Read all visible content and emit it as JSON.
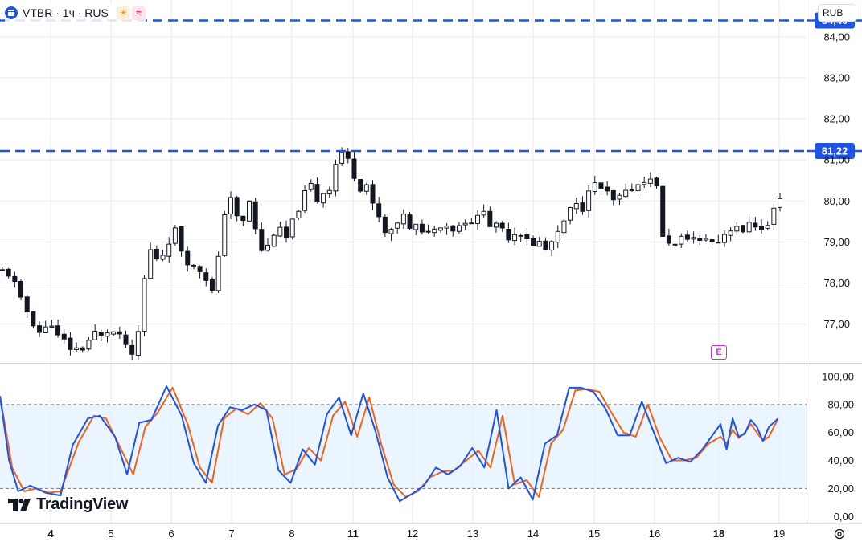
{
  "header": {
    "symbol": "VTBR · 1ч · RUS",
    "currency_button": "RUB",
    "logo_text": "TradingView",
    "event_marker": "E"
  },
  "colors": {
    "up": "#131722",
    "down": "#131722",
    "level_line": "#1e53e5",
    "stoch_k": "#1e53e5",
    "stoch_d": "#f0641e",
    "stoch_band": "#e3f2fd",
    "grid": "#e8eaee"
  },
  "chart_data": [
    {
      "type": "candlestick",
      "yscale": "linear",
      "ylim": [
        76.05,
        84.9
      ],
      "y_ticks": [
        "84,00",
        "83,00",
        "82,00",
        "81,00",
        "80,00",
        "79,00",
        "78,00",
        "77,00"
      ],
      "y_tick_values": [
        84,
        83,
        82,
        81,
        80,
        79,
        78,
        77
      ],
      "x_labels": [
        "4",
        "5",
        "6",
        "7",
        "8",
        "11",
        "12",
        "13",
        "14",
        "15",
        "16",
        "18",
        "19"
      ],
      "horizontal_levels": [
        {
          "label": "84,40",
          "value": 84.4
        },
        {
          "label": "81,22",
          "value": 81.22
        }
      ],
      "anchors": [
        [
          0,
          78.3
        ],
        [
          1,
          78.2
        ],
        [
          2,
          78.0
        ],
        [
          3,
          77.6
        ],
        [
          4,
          77.3
        ],
        [
          5,
          77.0
        ],
        [
          6,
          76.8
        ],
        [
          7,
          76.9
        ],
        [
          8,
          77.0
        ],
        [
          9,
          76.7
        ],
        [
          10,
          76.6
        ],
        [
          11,
          76.4
        ],
        [
          12,
          76.4
        ],
        [
          13,
          76.4
        ],
        [
          14,
          76.6
        ],
        [
          15,
          76.8
        ],
        [
          16,
          76.7
        ],
        [
          17,
          76.8
        ],
        [
          18,
          76.8
        ],
        [
          19,
          76.7
        ],
        [
          20,
          76.5
        ],
        [
          21,
          76.2
        ],
        [
          22,
          76.8
        ],
        [
          23,
          78.1
        ],
        [
          24,
          78.8
        ],
        [
          25,
          78.6
        ],
        [
          26,
          78.7
        ],
        [
          27,
          79.0
        ],
        [
          28,
          79.3
        ],
        [
          29,
          78.8
        ],
        [
          30,
          78.5
        ],
        [
          31,
          78.4
        ],
        [
          32,
          78.3
        ],
        [
          33,
          78.1
        ],
        [
          34,
          77.8
        ],
        [
          35,
          78.6
        ],
        [
          36,
          79.7
        ],
        [
          37,
          80.1
        ],
        [
          38,
          79.6
        ],
        [
          39,
          79.5
        ],
        [
          40,
          80.0
        ],
        [
          41,
          79.3
        ],
        [
          42,
          78.8
        ],
        [
          43,
          78.9
        ],
        [
          44,
          79.2
        ],
        [
          45,
          79.3
        ],
        [
          46,
          79.1
        ],
        [
          47,
          79.5
        ],
        [
          48,
          79.8
        ],
        [
          49,
          80.2
        ],
        [
          50,
          80.4
        ],
        [
          51,
          80.0
        ],
        [
          52,
          80.2
        ],
        [
          53,
          80.3
        ],
        [
          54,
          80.9
        ],
        [
          55,
          81.2
        ],
        [
          56,
          81.0
        ],
        [
          57,
          80.6
        ],
        [
          58,
          80.3
        ],
        [
          59,
          80.4
        ],
        [
          60,
          79.9
        ],
        [
          61,
          79.6
        ],
        [
          62,
          79.2
        ],
        [
          63,
          79.3
        ],
        [
          64,
          79.4
        ],
        [
          65,
          79.7
        ],
        [
          66,
          79.3
        ],
        [
          67,
          79.4
        ],
        [
          68,
          79.2
        ],
        [
          69,
          79.3
        ],
        [
          70,
          79.3
        ],
        [
          71,
          79.4
        ],
        [
          72,
          79.4
        ],
        [
          73,
          79.3
        ],
        [
          74,
          79.4
        ],
        [
          75,
          79.5
        ],
        [
          76,
          79.5
        ],
        [
          77,
          79.6
        ],
        [
          78,
          79.8
        ],
        [
          79,
          79.4
        ],
        [
          80,
          79.4
        ],
        [
          81,
          79.3
        ],
        [
          82,
          79.1
        ],
        [
          83,
          79.2
        ],
        [
          84,
          79.2
        ],
        [
          85,
          79.1
        ],
        [
          86,
          78.9
        ],
        [
          87,
          79.0
        ],
        [
          88,
          78.8
        ],
        [
          89,
          79.0
        ],
        [
          90,
          79.2
        ],
        [
          91,
          79.5
        ],
        [
          92,
          79.8
        ],
        [
          93,
          79.9
        ],
        [
          94,
          79.8
        ],
        [
          95,
          80.3
        ],
        [
          96,
          80.4
        ],
        [
          97,
          80.3
        ],
        [
          98,
          80.2
        ],
        [
          99,
          80.0
        ],
        [
          100,
          80.1
        ],
        [
          101,
          80.2
        ],
        [
          102,
          80.3
        ],
        [
          103,
          80.4
        ],
        [
          104,
          80.5
        ],
        [
          105,
          80.5
        ],
        [
          106,
          80.4
        ],
        [
          107,
          79.1
        ],
        [
          108,
          79.0
        ],
        [
          109,
          78.9
        ],
        [
          110,
          79.1
        ],
        [
          111,
          79.1
        ],
        [
          112,
          79.1
        ],
        [
          113,
          79.0
        ],
        [
          114,
          79.1
        ],
        [
          115,
          79.0
        ],
        [
          116,
          79.0
        ],
        [
          117,
          79.2
        ],
        [
          118,
          79.3
        ],
        [
          119,
          79.4
        ],
        [
          120,
          79.2
        ],
        [
          121,
          79.5
        ],
        [
          122,
          79.4
        ],
        [
          123,
          79.3
        ],
        [
          124,
          79.4
        ],
        [
          125,
          79.8
        ],
        [
          126,
          80.1
        ]
      ]
    },
    {
      "type": "line",
      "indicator": "Stochastic",
      "ylim": [
        -5,
        108
      ],
      "y_ticks": [
        "100,00",
        "80,00",
        "60,00",
        "40,00",
        "20,00",
        "0,00"
      ],
      "y_tick_values": [
        100,
        80,
        60,
        40,
        20,
        0
      ],
      "band": [
        20,
        80
      ],
      "series": [
        {
          "role": "k",
          "values": [
            [
              0,
              86
            ],
            [
              3,
              40
            ],
            [
              6,
              18
            ],
            [
              10,
              22
            ],
            [
              15,
              17
            ],
            [
              20,
              15
            ],
            [
              24,
              51
            ],
            [
              29,
              70
            ],
            [
              33,
              72
            ],
            [
              38,
              57
            ],
            [
              42,
              30
            ],
            [
              46,
              67
            ],
            [
              50,
              69
            ],
            [
              55,
              93
            ],
            [
              60,
              72
            ],
            [
              64,
              38
            ],
            [
              68,
              24
            ],
            [
              72,
              65
            ],
            [
              76,
              78
            ],
            [
              80,
              76
            ],
            [
              84,
              80
            ],
            [
              88,
              76
            ],
            [
              92,
              33
            ],
            [
              96,
              24
            ],
            [
              100,
              48
            ],
            [
              104,
              37
            ],
            [
              108,
              73
            ],
            [
              112,
              85
            ],
            [
              116,
              58
            ],
            [
              120,
              88
            ],
            [
              124,
              61
            ],
            [
              128,
              28
            ],
            [
              132,
              11
            ],
            [
              136,
              16
            ],
            [
              140,
              22
            ],
            [
              144,
              35
            ],
            [
              148,
              30
            ],
            [
              152,
              36
            ],
            [
              156,
              49
            ],
            [
              160,
              35
            ],
            [
              164,
              76
            ],
            [
              168,
              20
            ],
            [
              172,
              28
            ],
            [
              176,
              12
            ],
            [
              180,
              52
            ],
            [
              184,
              58
            ],
            [
              188,
              92
            ],
            [
              192,
              92
            ],
            [
              196,
              89
            ],
            [
              200,
              77
            ],
            [
              204,
              58
            ],
            [
              208,
              58
            ],
            [
              212,
              82
            ],
            [
              216,
              60
            ],
            [
              220,
              38
            ],
            [
              224,
              42
            ],
            [
              228,
              39
            ],
            [
              232,
              48
            ],
            [
              236,
              60
            ],
            [
              238,
              66
            ],
            [
              240,
              48
            ],
            [
              242,
              70
            ],
            [
              244,
              57
            ],
            [
              246,
              59
            ],
            [
              248,
              69
            ],
            [
              250,
              64
            ],
            [
              252,
              54
            ],
            [
              254,
              64
            ],
            [
              257,
              70
            ]
          ]
        },
        {
          "role": "d",
          "values": [
            [
              0,
              86
            ],
            [
              4,
              35
            ],
            [
              8,
              18
            ],
            [
              12,
              20
            ],
            [
              16,
              17
            ],
            [
              20,
              18
            ],
            [
              26,
              53
            ],
            [
              31,
              72
            ],
            [
              35,
              70
            ],
            [
              40,
              48
            ],
            [
              44,
              30
            ],
            [
              48,
              64
            ],
            [
              52,
              74
            ],
            [
              57,
              92
            ],
            [
              62,
              66
            ],
            [
              66,
              35
            ],
            [
              70,
              24
            ],
            [
              74,
              70
            ],
            [
              78,
              77
            ],
            [
              82,
              73
            ],
            [
              86,
              81
            ],
            [
              90,
              70
            ],
            [
              94,
              30
            ],
            [
              98,
              34
            ],
            [
              102,
              49
            ],
            [
              106,
              40
            ],
            [
              110,
              72
            ],
            [
              114,
              82
            ],
            [
              118,
              57
            ],
            [
              122,
              85
            ],
            [
              126,
              51
            ],
            [
              130,
              23
            ],
            [
              134,
              14
            ],
            [
              138,
              18
            ],
            [
              142,
              28
            ],
            [
              146,
              32
            ],
            [
              150,
              33
            ],
            [
              154,
              40
            ],
            [
              158,
              47
            ],
            [
              162,
              35
            ],
            [
              166,
              72
            ],
            [
              170,
              23
            ],
            [
              174,
              26
            ],
            [
              178,
              14
            ],
            [
              182,
              52
            ],
            [
              186,
              62
            ],
            [
              190,
              90
            ],
            [
              194,
              91
            ],
            [
              198,
              89
            ],
            [
              202,
              74
            ],
            [
              206,
              60
            ],
            [
              210,
              57
            ],
            [
              214,
              80
            ],
            [
              218,
              56
            ],
            [
              222,
              40
            ],
            [
              226,
              40
            ],
            [
              230,
              42
            ],
            [
              234,
              52
            ],
            [
              238,
              57
            ],
            [
              240,
              52
            ],
            [
              242,
              62
            ],
            [
              244,
              56
            ],
            [
              246,
              60
            ],
            [
              248,
              66
            ],
            [
              250,
              60
            ],
            [
              252,
              54
            ],
            [
              254,
              57
            ],
            [
              257,
              70
            ]
          ]
        }
      ]
    }
  ]
}
